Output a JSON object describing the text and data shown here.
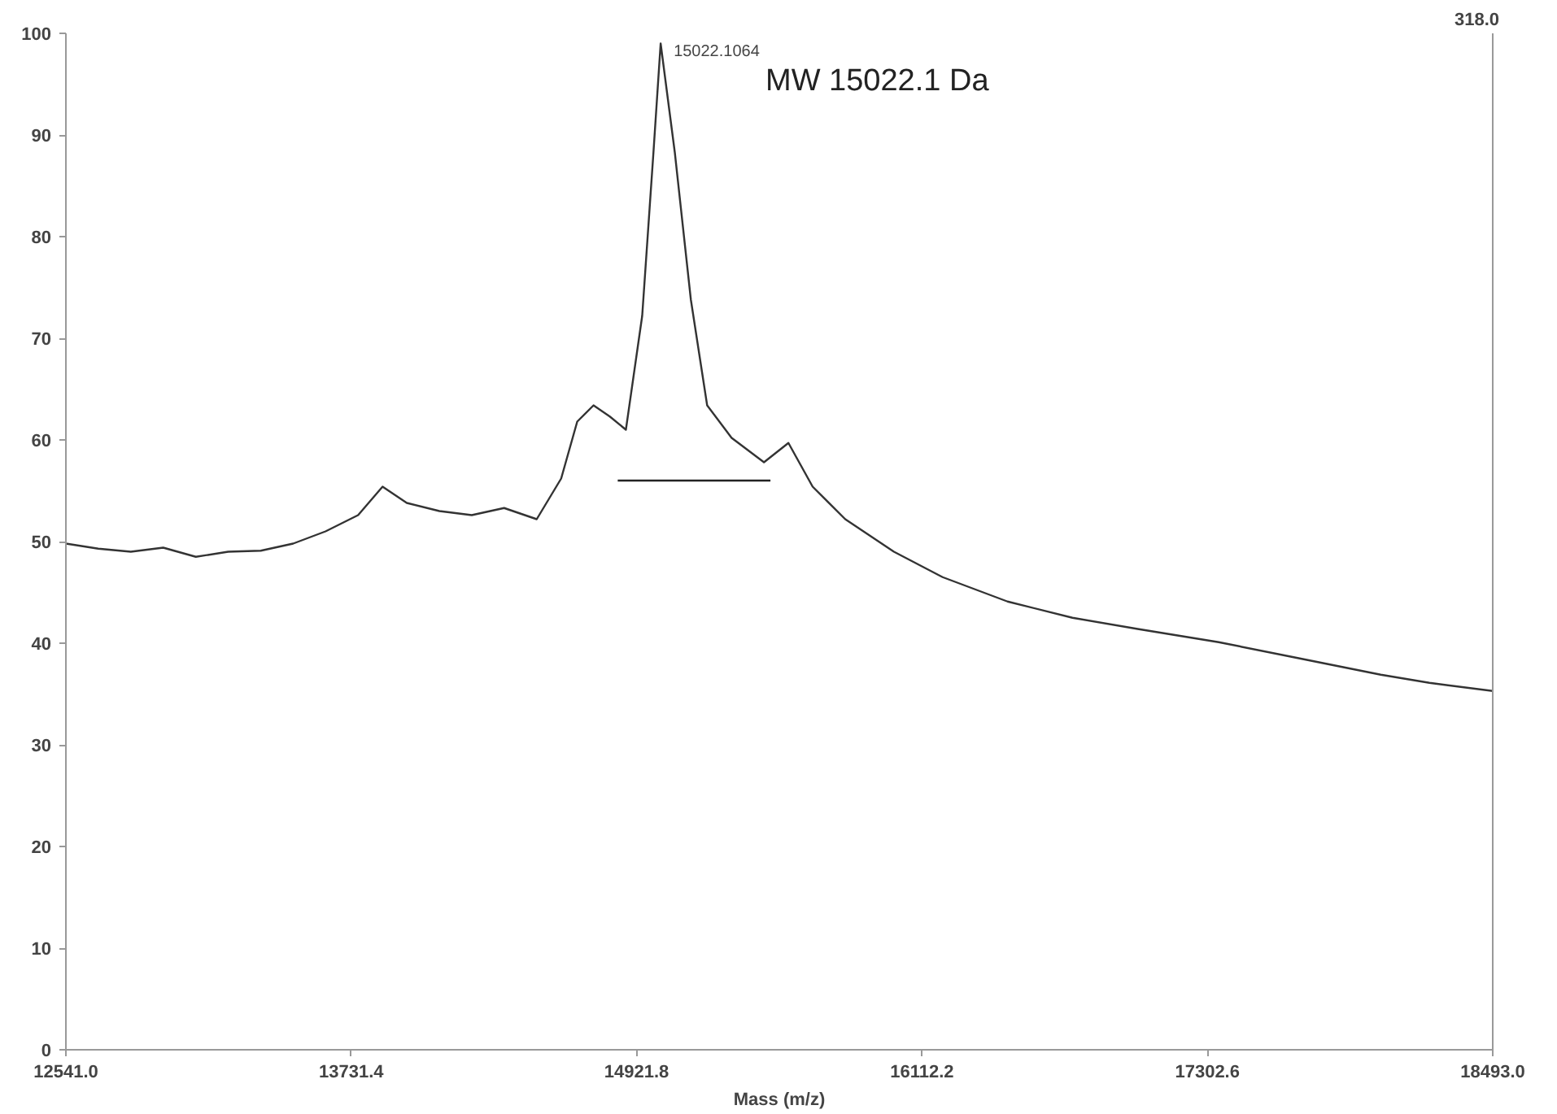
{
  "chart_data": {
    "type": "line",
    "xlabel": "Mass (m/z)",
    "x": [
      12541,
      12676,
      12812,
      12947,
      13083,
      13218,
      13354,
      13489,
      13624,
      13760,
      13862,
      13963,
      14099,
      14234,
      14369,
      14505,
      14607,
      14674,
      14742,
      14810,
      14877,
      14945,
      14992,
      15022,
      15081,
      15148,
      15216,
      15318,
      15453,
      15555,
      15656,
      15792,
      15995,
      16198,
      16469,
      16740,
      17012,
      17350,
      17688,
      18026,
      18229,
      18493
    ],
    "series": [
      {
        "color": "#333333",
        "values": [
          49.8,
          49.3,
          49.0,
          49.4,
          48.5,
          49.0,
          49.1,
          49.8,
          51.0,
          52.6,
          55.4,
          53.8,
          53.0,
          52.6,
          53.3,
          52.2,
          56.2,
          61.8,
          63.4,
          62.3,
          61.0,
          72.2,
          88.3,
          99,
          88.3,
          73.8,
          63.4,
          60.2,
          57.8,
          59.7,
          55.4,
          52.2,
          49.0,
          46.5,
          44.1,
          42.5,
          41.4,
          40.1,
          38.5,
          36.9,
          36.1,
          35.3
        ]
      },
      {
        "type": "line",
        "color": "#222222",
        "x": [
          14843,
          15480
        ],
        "values": [
          56,
          56
        ]
      }
    ],
    "annotations": [
      {
        "text": "15022.1064",
        "x": 15022,
        "y": 99
      },
      "MW 15022.1 Da",
      "318.0"
    ],
    "xlim": [
      12541,
      18493
    ],
    "xticks": [
      {
        "value": 12541,
        "label": "12541.0"
      },
      {
        "value": 13731.4,
        "label": "13731.4"
      },
      {
        "value": 14921.8,
        "label": "14921.8"
      },
      {
        "value": 16112.2,
        "label": "16112.2"
      },
      {
        "value": 17302.6,
        "label": "17302.6"
      },
      {
        "value": 18493,
        "label": "18493.0"
      }
    ],
    "ylim": [
      0,
      100
    ],
    "yticks": [
      0,
      10,
      20,
      30,
      40,
      50,
      60,
      70,
      80,
      90,
      100
    ],
    "grid": false,
    "marker": "none",
    "line_style": "solid"
  }
}
